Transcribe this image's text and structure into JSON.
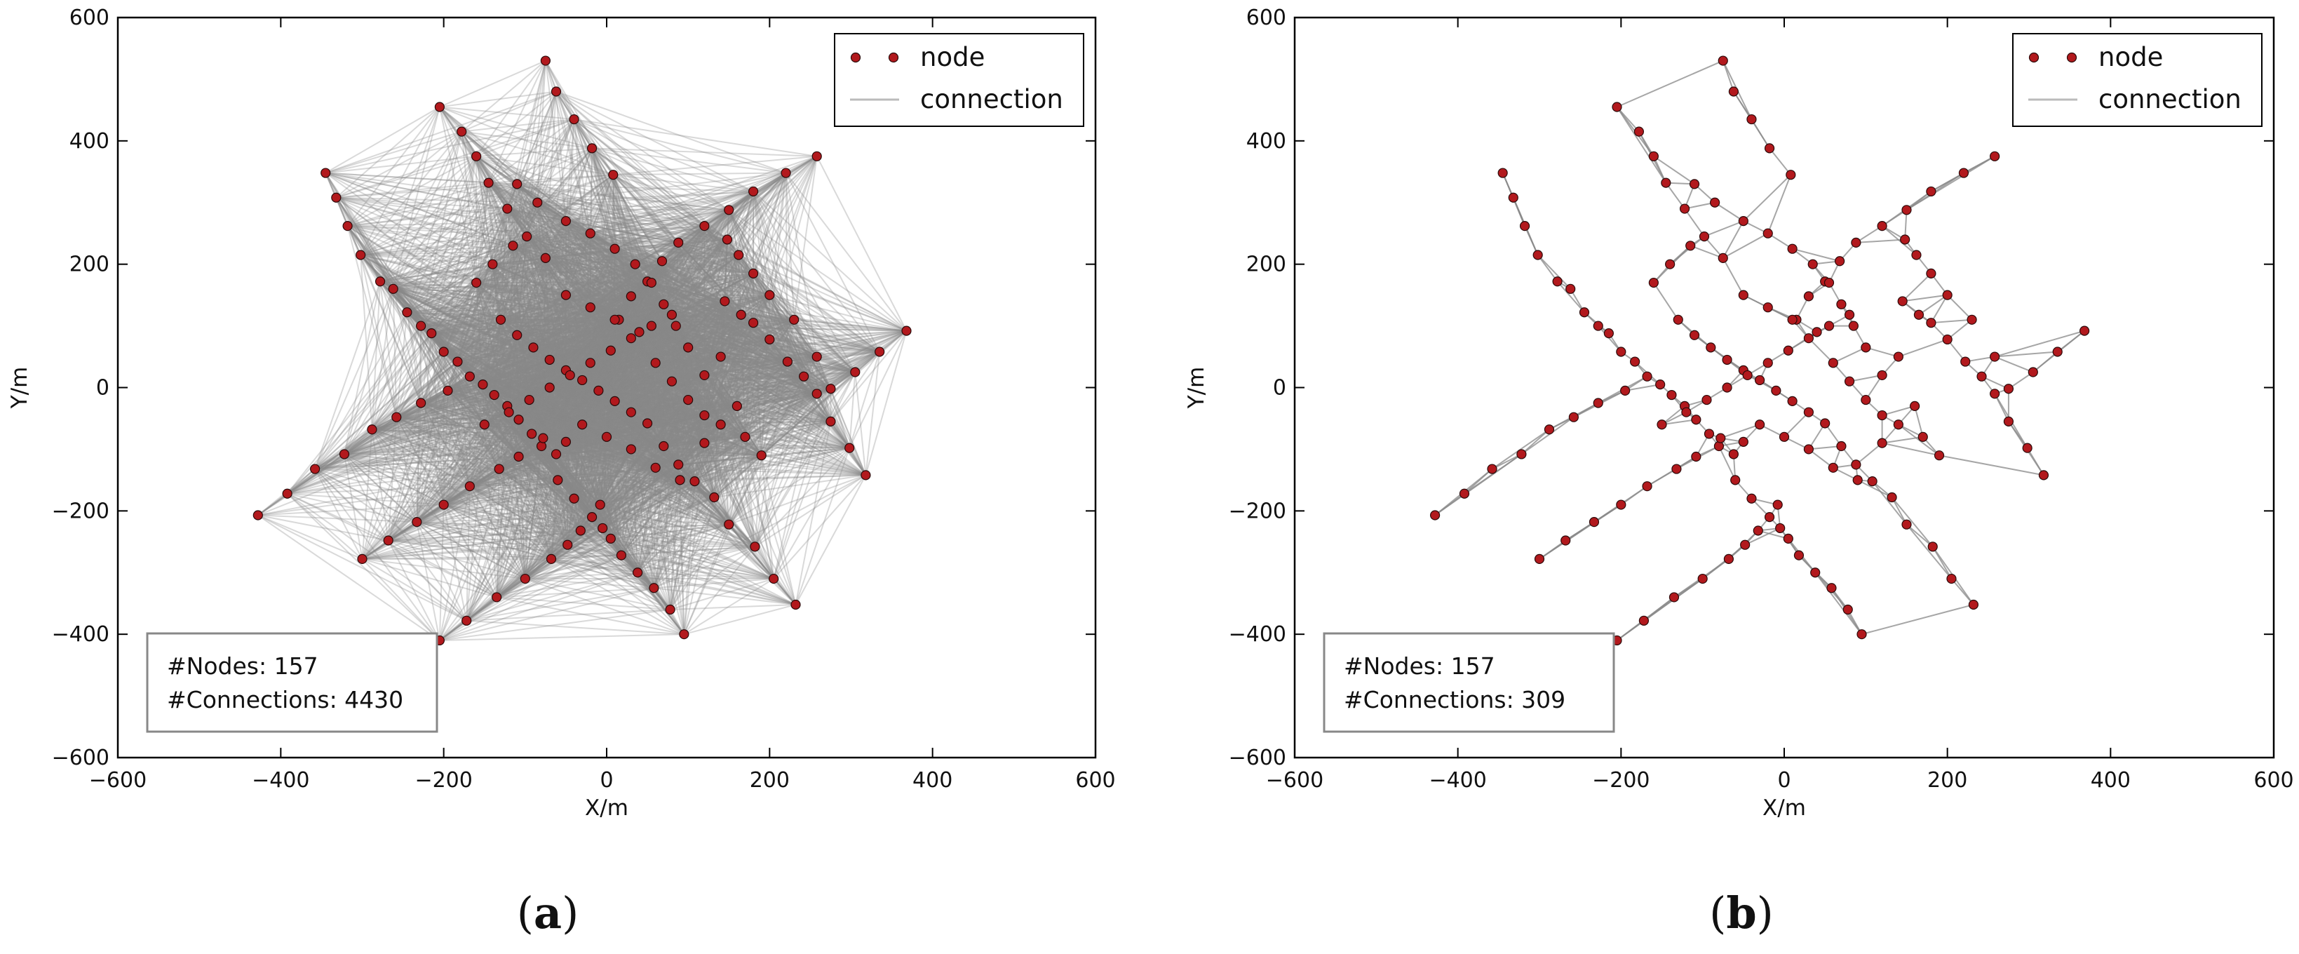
{
  "chart_data": [
    {
      "type": "scatter",
      "panel_label": "a",
      "title": "",
      "xlabel": "X/m",
      "ylabel": "Y/m",
      "xlim": [
        -600,
        600
      ],
      "ylim": [
        -600,
        600
      ],
      "xticks": [
        -600,
        -400,
        -200,
        0,
        200,
        400,
        600
      ],
      "yticks": [
        -600,
        -400,
        -200,
        0,
        200,
        400,
        600
      ],
      "xtick_labels": [
        "−600",
        "−400",
        "−200",
        "0",
        "200",
        "400",
        "600"
      ],
      "ytick_labels": [
        "−600",
        "−400",
        "−200",
        "0",
        "200",
        "400",
        "600"
      ],
      "grid": false,
      "legend_position": "top-right",
      "legend": [
        "node",
        "connection"
      ],
      "connection_mode": "all_within_range",
      "info_lines": [
        "#Nodes: 157",
        "#Connections: 4430"
      ],
      "series": [
        {
          "name": "node",
          "color": "#b2191d"
        },
        {
          "name": "connection",
          "color": "#888888"
        }
      ]
    },
    {
      "type": "scatter",
      "panel_label": "b",
      "title": "",
      "xlabel": "X/m",
      "ylabel": "Y/m",
      "xlim": [
        -600,
        600
      ],
      "ylim": [
        -600,
        600
      ],
      "xticks": [
        -600,
        -400,
        -200,
        0,
        200,
        400,
        600
      ],
      "yticks": [
        -600,
        -400,
        -200,
        0,
        200,
        400,
        600
      ],
      "xtick_labels": [
        "−600",
        "−400",
        "−200",
        "0",
        "200",
        "400",
        "600"
      ],
      "ytick_labels": [
        "−600",
        "−400",
        "−200",
        "0",
        "200",
        "400",
        "600"
      ],
      "grid": false,
      "legend_position": "top-right",
      "legend": [
        "node",
        "connection"
      ],
      "connection_mode": "nearest_neighbors",
      "info_lines": [
        "#Nodes: 157",
        "#Connections: 309"
      ],
      "series": [
        {
          "name": "node",
          "color": "#b2191d"
        },
        {
          "name": "connection",
          "color": "#888888"
        }
      ]
    }
  ],
  "nodes": [
    [
      -75,
      530
    ],
    [
      -62,
      480
    ],
    [
      -40,
      435
    ],
    [
      -18,
      388
    ],
    [
      8,
      345
    ],
    [
      -205,
      455
    ],
    [
      -178,
      415
    ],
    [
      -160,
      375
    ],
    [
      -145,
      332
    ],
    [
      -122,
      290
    ],
    [
      -98,
      245
    ],
    [
      -75,
      210
    ],
    [
      -345,
      348
    ],
    [
      -332,
      308
    ],
    [
      -318,
      262
    ],
    [
      -302,
      215
    ],
    [
      -278,
      172
    ],
    [
      -262,
      160
    ],
    [
      -245,
      122
    ],
    [
      -228,
      100
    ],
    [
      -215,
      88
    ],
    [
      -200,
      58
    ],
    [
      -183,
      42
    ],
    [
      -168,
      18
    ],
    [
      -152,
      5
    ],
    [
      -138,
      -12
    ],
    [
      -122,
      -30
    ],
    [
      -108,
      -52
    ],
    [
      -92,
      -75
    ],
    [
      -80,
      -95
    ],
    [
      -62,
      -108
    ],
    [
      -50,
      -88
    ],
    [
      -428,
      -207
    ],
    [
      -392,
      -172
    ],
    [
      -358,
      -132
    ],
    [
      -322,
      -108
    ],
    [
      -288,
      -68
    ],
    [
      -258,
      -48
    ],
    [
      -228,
      -25
    ],
    [
      -195,
      -5
    ],
    [
      -300,
      -278
    ],
    [
      -268,
      -248
    ],
    [
      -233,
      -218
    ],
    [
      -200,
      -190
    ],
    [
      -168,
      -160
    ],
    [
      -132,
      -132
    ],
    [
      -108,
      -112
    ],
    [
      -78,
      -82
    ],
    [
      -205,
      -410
    ],
    [
      -172,
      -378
    ],
    [
      -135,
      -340
    ],
    [
      -100,
      -310
    ],
    [
      -68,
      -278
    ],
    [
      -48,
      -255
    ],
    [
      -32,
      -232
    ],
    [
      -18,
      -210
    ],
    [
      -8,
      -190
    ],
    [
      95,
      -400
    ],
    [
      78,
      -360
    ],
    [
      58,
      -325
    ],
    [
      38,
      -300
    ],
    [
      18,
      -272
    ],
    [
      5,
      -245
    ],
    [
      -5,
      -228
    ],
    [
      232,
      -352
    ],
    [
      205,
      -310
    ],
    [
      182,
      -258
    ],
    [
      150,
      -222
    ],
    [
      132,
      -178
    ],
    [
      108,
      -152
    ],
    [
      88,
      -125
    ],
    [
      70,
      -95
    ],
    [
      318,
      -142
    ],
    [
      298,
      -98
    ],
    [
      275,
      -55
    ],
    [
      258,
      -10
    ],
    [
      242,
      18
    ],
    [
      222,
      42
    ],
    [
      200,
      78
    ],
    [
      180,
      105
    ],
    [
      165,
      118
    ],
    [
      145,
      140
    ],
    [
      368,
      92
    ],
    [
      335,
      58
    ],
    [
      305,
      25
    ],
    [
      275,
      -2
    ],
    [
      258,
      50
    ],
    [
      230,
      110
    ],
    [
      200,
      150
    ],
    [
      180,
      185
    ],
    [
      162,
      215
    ],
    [
      148,
      240
    ],
    [
      258,
      375
    ],
    [
      220,
      348
    ],
    [
      180,
      318
    ],
    [
      150,
      288
    ],
    [
      120,
      262
    ],
    [
      88,
      235
    ],
    [
      68,
      205
    ],
    [
      50,
      172
    ],
    [
      30,
      148
    ],
    [
      15,
      110
    ],
    [
      -110,
      330
    ],
    [
      -85,
      300
    ],
    [
      -50,
      270
    ],
    [
      -20,
      250
    ],
    [
      10,
      225
    ],
    [
      35,
      200
    ],
    [
      55,
      170
    ],
    [
      70,
      135
    ],
    [
      85,
      100
    ],
    [
      100,
      65
    ],
    [
      -130,
      110
    ],
    [
      -110,
      85
    ],
    [
      -90,
      65
    ],
    [
      -70,
      45
    ],
    [
      -50,
      28
    ],
    [
      -30,
      12
    ],
    [
      -10,
      -5
    ],
    [
      10,
      -22
    ],
    [
      30,
      -40
    ],
    [
      50,
      -58
    ],
    [
      -150,
      -60
    ],
    [
      -120,
      -40
    ],
    [
      -95,
      -20
    ],
    [
      -70,
      0
    ],
    [
      -45,
      20
    ],
    [
      -20,
      40
    ],
    [
      5,
      60
    ],
    [
      30,
      80
    ],
    [
      55,
      100
    ],
    [
      80,
      118
    ],
    [
      -50,
      150
    ],
    [
      -20,
      130
    ],
    [
      10,
      110
    ],
    [
      40,
      90
    ],
    [
      60,
      40
    ],
    [
      80,
      10
    ],
    [
      100,
      -20
    ],
    [
      120,
      -45
    ],
    [
      -30,
      -60
    ],
    [
      0,
      -80
    ],
    [
      30,
      -100
    ],
    [
      60,
      -130
    ],
    [
      90,
      -150
    ],
    [
      120,
      -90
    ],
    [
      140,
      -60
    ],
    [
      160,
      -30
    ],
    [
      -160,
      170
    ],
    [
      -140,
      200
    ],
    [
      -115,
      230
    ],
    [
      120,
      20
    ],
    [
      140,
      50
    ],
    [
      -60,
      -150
    ],
    [
      -40,
      -180
    ],
    [
      170,
      -80
    ],
    [
      190,
      -110
    ]
  ]
}
